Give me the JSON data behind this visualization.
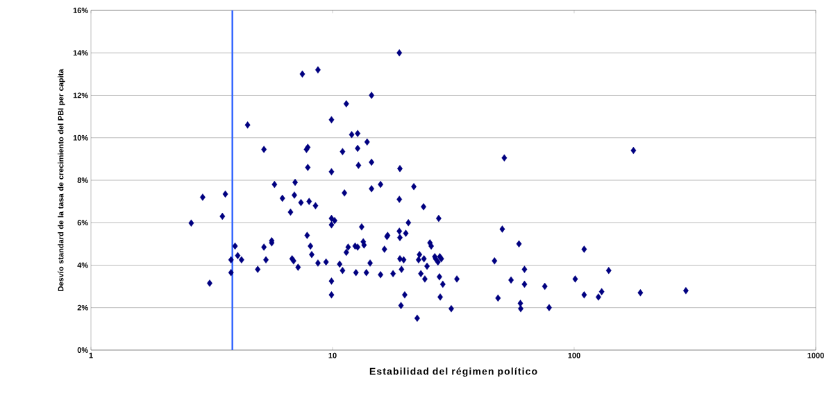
{
  "chart_data": {
    "type": "scatter",
    "xlabel": "Estabilidad del régimen político",
    "ylabel": "Desvío standard de la tasa de crecimiento del PBI per capita",
    "log": "x",
    "grid": "y",
    "marker": "diamond",
    "xlim": [
      1,
      1000
    ],
    "xticks": [
      1,
      10,
      100,
      1000
    ],
    "ylim": [
      0,
      16
    ],
    "yticks": [
      {
        "value": 0,
        "label": "0%"
      },
      {
        "value": 2,
        "label": "2%"
      },
      {
        "value": 4,
        "label": "4%"
      },
      {
        "value": 6,
        "label": "6%"
      },
      {
        "value": 8,
        "label": "8%"
      },
      {
        "value": 10,
        "label": "10%"
      },
      {
        "value": 12,
        "label": "12%"
      },
      {
        "value": 14,
        "label": "14%"
      },
      {
        "value": 16,
        "label": "16%"
      }
    ],
    "ref_lines": [
      {
        "axis": "x",
        "value": 3.85,
        "color": "#3366ff"
      }
    ],
    "series": [
      {
        "color": "#000080",
        "x": [
          2.6,
          2.9,
          3.6,
          3.5,
          3.1,
          3.8,
          3.8,
          3.95,
          4.05,
          4.2,
          4.45,
          4.9,
          5.2,
          5.2,
          5.3,
          5.6,
          5.6,
          5.75,
          6.2,
          6.7,
          6.8,
          7.0,
          6.95,
          6.9,
          7.2,
          7.5,
          7.4,
          7.8,
          7.9,
          7.9,
          7.85,
          8.0,
          8.1,
          8.5,
          8.2,
          8.7,
          8.7,
          9.4,
          9.9,
          9.9,
          9.9,
          9.9,
          9.9,
          9.9,
          10.2,
          10.7,
          11.0,
          11.2,
          11.0,
          11.4,
          11.4,
          11.6,
          12.0,
          12.4,
          12.5,
          12.7,
          12.7,
          12.8,
          12.7,
          13.2,
          13.4,
          13.5,
          13.8,
          13.9,
          14.3,
          14.5,
          14.5,
          14.5,
          15.8,
          15.8,
          16.4,
          16.8,
          16.9,
          17.8,
          18.9,
          18.9,
          19.0,
          18.9,
          19.0,
          19.0,
          19.2,
          19.3,
          19.7,
          19.9,
          20.1,
          20.6,
          21.7,
          22.4,
          22.7,
          22.9,
          23.2,
          23.8,
          23.9,
          24.1,
          24.6,
          25.3,
          25.6,
          26.5,
          26.7,
          27.3,
          27.5,
          27.8,
          27.7,
          28.2,
          27.9,
          28.6,
          31.0,
          32.7,
          46.8,
          48.4,
          50.4,
          51.4,
          54.8,
          59.1,
          59.9,
          60.1,
          62.3,
          62.3,
          75.6,
          78.8,
          101,
          110,
          110,
          126,
          130,
          139,
          176,
          188,
          290
        ],
        "values": [
          5.98,
          7.2,
          7.35,
          6.3,
          3.15,
          4.25,
          3.65,
          4.9,
          4.45,
          4.25,
          10.6,
          3.8,
          4.85,
          9.45,
          4.25,
          5.15,
          5.05,
          7.8,
          7.15,
          6.5,
          4.3,
          7.9,
          7.3,
          4.2,
          3.9,
          13.0,
          6.95,
          9.45,
          9.55,
          8.6,
          5.4,
          7.0,
          4.9,
          6.8,
          4.5,
          13.2,
          4.1,
          4.15,
          10.85,
          8.4,
          6.2,
          5.9,
          3.25,
          2.6,
          6.1,
          4.05,
          9.35,
          7.4,
          3.75,
          11.6,
          4.6,
          4.85,
          10.15,
          4.9,
          3.65,
          10.2,
          9.5,
          8.7,
          4.85,
          5.8,
          5.1,
          4.95,
          3.65,
          9.8,
          4.1,
          8.85,
          7.6,
          12.0,
          7.8,
          3.55,
          4.75,
          5.35,
          5.4,
          3.6,
          14.0,
          7.1,
          8.55,
          5.6,
          5.3,
          4.3,
          2.1,
          3.8,
          4.25,
          2.6,
          5.5,
          6.0,
          7.7,
          1.5,
          4.25,
          4.5,
          3.6,
          6.75,
          4.3,
          3.35,
          3.95,
          5.05,
          4.9,
          4.4,
          4.3,
          4.15,
          6.2,
          4.4,
          3.45,
          4.3,
          2.5,
          3.1,
          1.95,
          3.35,
          4.2,
          2.45,
          5.7,
          9.05,
          3.3,
          5.0,
          2.2,
          1.95,
          3.1,
          3.8,
          3.0,
          2.0,
          3.35,
          4.75,
          2.6,
          2.5,
          2.75,
          3.75,
          9.4,
          2.7,
          2.8
        ]
      }
    ]
  }
}
